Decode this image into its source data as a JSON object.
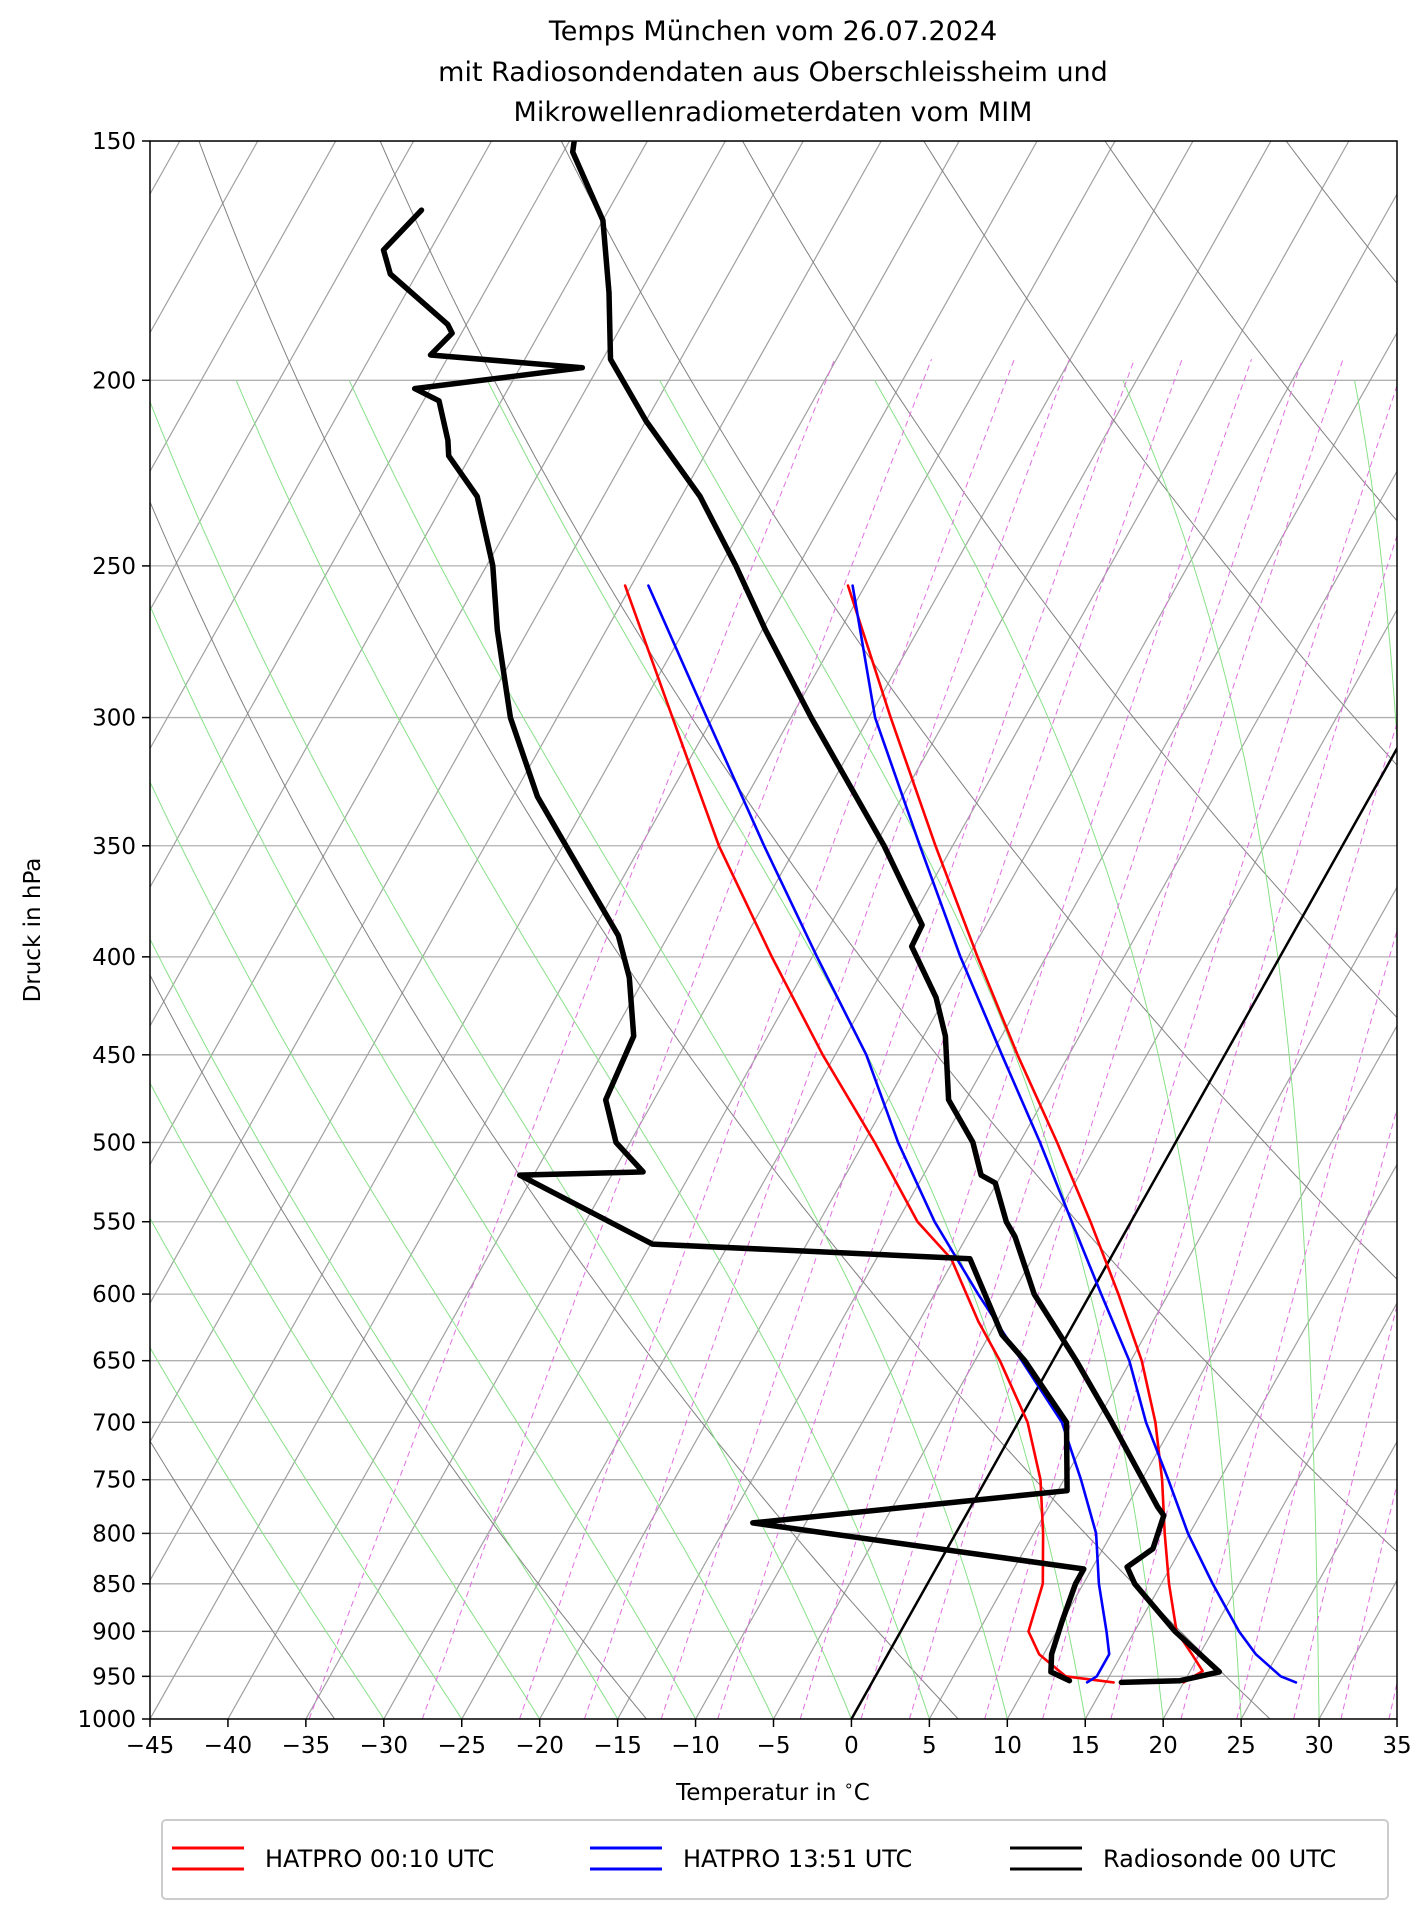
{
  "title_lines": [
    "Temps München vom 26.07.2024",
    "mit Radiosondendaten aus Oberschleissheim und",
    "Mikrowellenradiometerdaten vom MIM"
  ],
  "chart_data": {
    "type": "line",
    "subtype": "skew-T log-p diagram",
    "xlabel": "Temperatur in $^\\circ$C",
    "ylabel": "Druck in hPa",
    "xlim": [
      -45,
      35
    ],
    "ylim": [
      1000,
      150
    ],
    "y_scale": "log",
    "x_ticks": [
      -45,
      -40,
      -35,
      -30,
      -25,
      -20,
      -15,
      -10,
      -5,
      0,
      5,
      10,
      15,
      20,
      25,
      30,
      35
    ],
    "x_tick_labels": [
      "−45",
      "−40",
      "−35",
      "−30",
      "−25",
      "−20",
      "−15",
      "−10",
      "−5",
      "0",
      "5",
      "10",
      "15",
      "20",
      "25",
      "30",
      "35"
    ],
    "y_ticks": [
      1000,
      950,
      900,
      850,
      800,
      750,
      700,
      650,
      600,
      550,
      500,
      450,
      400,
      350,
      300,
      250,
      200,
      150
    ],
    "y_tick_labels": [
      "1000",
      "950",
      "900",
      "850",
      "800",
      "750",
      "700",
      "650",
      "600",
      "550",
      "500",
      "450",
      "400",
      "350",
      "300",
      "250",
      "200",
      "150"
    ],
    "grid": true,
    "legend_position": "below plot",
    "background_lines": [
      "isotherms (grey)",
      "dry adiabats (grey)",
      "moist adiabats (green)",
      "mixing ratio lines (magenta, dashed)"
    ],
    "series": [
      {
        "name": "HATPRO 00:10 UTC",
        "color": "#ff0000",
        "curves": [
          {
            "kind": "temperature",
            "points": [
              [
                957,
                20.0
              ],
              [
                944,
                20.8
              ],
              [
                925,
                19.5
              ],
              [
                900,
                17.7
              ],
              [
                850,
                15.5
              ],
              [
                800,
                13.4
              ],
              [
                750,
                11.3
              ],
              [
                700,
                8.8
              ],
              [
                650,
                5.7
              ],
              [
                600,
                1.8
              ],
              [
                550,
                -2.6
              ],
              [
                500,
                -7.6
              ],
              [
                450,
                -13.3
              ],
              [
                400,
                -19.4
              ],
              [
                350,
                -26.1
              ],
              [
                300,
                -33.6
              ],
              [
                256,
                -41.1
              ]
            ]
          },
          {
            "kind": "dewpoint",
            "points": [
              [
                957,
                15.5
              ],
              [
                950,
                12.2
              ],
              [
                925,
                9.7
              ],
              [
                900,
                8.2
              ],
              [
                850,
                7.4
              ],
              [
                800,
                5.6
              ],
              [
                750,
                3.5
              ],
              [
                700,
                0.6
              ],
              [
                650,
                -3.4
              ],
              [
                620,
                -6.2
              ],
              [
                575,
                -10.2
              ],
              [
                550,
                -13.7
              ],
              [
                500,
                -19.3
              ],
              [
                450,
                -25.8
              ],
              [
                400,
                -32.6
              ],
              [
                350,
                -40.0
              ],
              [
                300,
                -47.6
              ],
              [
                256,
                -55.4
              ]
            ]
          }
        ]
      },
      {
        "name": "HATPRO 13:51 UTC",
        "color": "#0000ff",
        "curves": [
          {
            "kind": "temperature",
            "points": [
              [
                957,
                27.2
              ],
              [
                950,
                26.0
              ],
              [
                925,
                23.6
              ],
              [
                900,
                21.7
              ],
              [
                850,
                18.3
              ],
              [
                800,
                14.9
              ],
              [
                750,
                11.7
              ],
              [
                700,
                8.2
              ],
              [
                650,
                4.9
              ],
              [
                600,
                0.7
              ],
              [
                550,
                -3.8
              ],
              [
                500,
                -8.7
              ],
              [
                450,
                -14.3
              ],
              [
                400,
                -20.5
              ],
              [
                350,
                -27.1
              ],
              [
                300,
                -34.6
              ],
              [
                256,
                -40.8
              ]
            ]
          },
          {
            "kind": "dewpoint",
            "points": [
              [
                957,
                13.8
              ],
              [
                950,
                14.2
              ],
              [
                925,
                14.2
              ],
              [
                900,
                13.2
              ],
              [
                850,
                11.0
              ],
              [
                800,
                9.0
              ],
              [
                750,
                6.1
              ],
              [
                700,
                2.8
              ],
              [
                650,
                -2.0
              ],
              [
                600,
                -7.2
              ],
              [
                550,
                -12.6
              ],
              [
                500,
                -17.8
              ],
              [
                450,
                -23.0
              ],
              [
                400,
                -29.7
              ],
              [
                350,
                -37.1
              ],
              [
                300,
                -45.4
              ],
              [
                256,
                -53.9
              ]
            ]
          }
        ]
      },
      {
        "name": "Radiosonde 00 UTC",
        "color": "#000000",
        "curves": [
          {
            "kind": "temperature",
            "points": [
              [
                957,
                16.0
              ],
              [
                955,
                19.7
              ],
              [
                945,
                21.9
              ],
              [
                900,
                17.6
              ],
              [
                850,
                13.3
              ],
              [
                833,
                12.2
              ],
              [
                815,
                13.2
              ],
              [
                783,
                12.7
              ],
              [
                775,
                12.0
              ],
              [
                700,
                6.0
              ],
              [
                650,
                1.5
              ],
              [
                600,
                -3.6
              ],
              [
                560,
                -6.9
              ],
              [
                550,
                -8.0
              ],
              [
                525,
                -10.1
              ],
              [
                520,
                -11.3
              ],
              [
                500,
                -13.0
              ],
              [
                475,
                -16.1
              ],
              [
                440,
                -18.6
              ],
              [
                420,
                -20.6
              ],
              [
                395,
                -24.0
              ],
              [
                385,
                -24.1
              ],
              [
                350,
                -29.4
              ],
              [
                300,
                -38.7
              ],
              [
                270,
                -44.8
              ],
              [
                250,
                -49.0
              ],
              [
                230,
                -53.8
              ],
              [
                210,
                -60.0
              ],
              [
                195,
                -64.5
              ],
              [
                180,
                -67.0
              ],
              [
                165,
                -70.0
              ],
              [
                152,
                -74.4
              ],
              [
                150,
                -74.7
              ]
            ]
          },
          {
            "kind": "dewpoint",
            "points": [
              [
                955,
                12.6
              ],
              [
                945,
                11.1
              ],
              [
                925,
                10.5
              ],
              [
                890,
                10.0
              ],
              [
                850,
                9.5
              ],
              [
                835,
                9.5
              ],
              [
                790,
                -13.4
              ],
              [
                760,
                5.6
              ],
              [
                700,
                3.1
              ],
              [
                650,
                -1.8
              ],
              [
                630,
                -4.2
              ],
              [
                575,
                -9.0
              ],
              [
                565,
                -29.9
              ],
              [
                520,
                -40.9
              ],
              [
                518,
                -33.1
              ],
              [
                500,
                -35.9
              ],
              [
                475,
                -38.1
              ],
              [
                440,
                -38.6
              ],
              [
                410,
                -41.0
              ],
              [
                390,
                -43.2
              ],
              [
                330,
                -53.4
              ],
              [
                300,
                -58.0
              ],
              [
                270,
                -62.0
              ],
              [
                250,
                -64.6
              ],
              [
                230,
                -68.1
              ],
              [
                219,
                -71.4
              ],
              [
                215,
                -72.0
              ],
              [
                205,
                -74.0
              ],
              [
                202,
                -76.0
              ],
              [
                197,
                -66.0
              ],
              [
                194,
                -76.2
              ],
              [
                189,
                -75.6
              ],
              [
                187,
                -76.2
              ],
              [
                176,
                -81.7
              ],
              [
                171,
                -83.0
              ],
              [
                163,
                -82.0
              ]
            ]
          }
        ]
      }
    ]
  },
  "legend": {
    "items": [
      {
        "label": "HATPRO 00:10 UTC",
        "color": "#ff0000"
      },
      {
        "label": "HATPRO 13:51 UTC",
        "color": "#0000ff"
      },
      {
        "label": "Radiosonde 00 UTC",
        "color": "#000000"
      }
    ]
  }
}
